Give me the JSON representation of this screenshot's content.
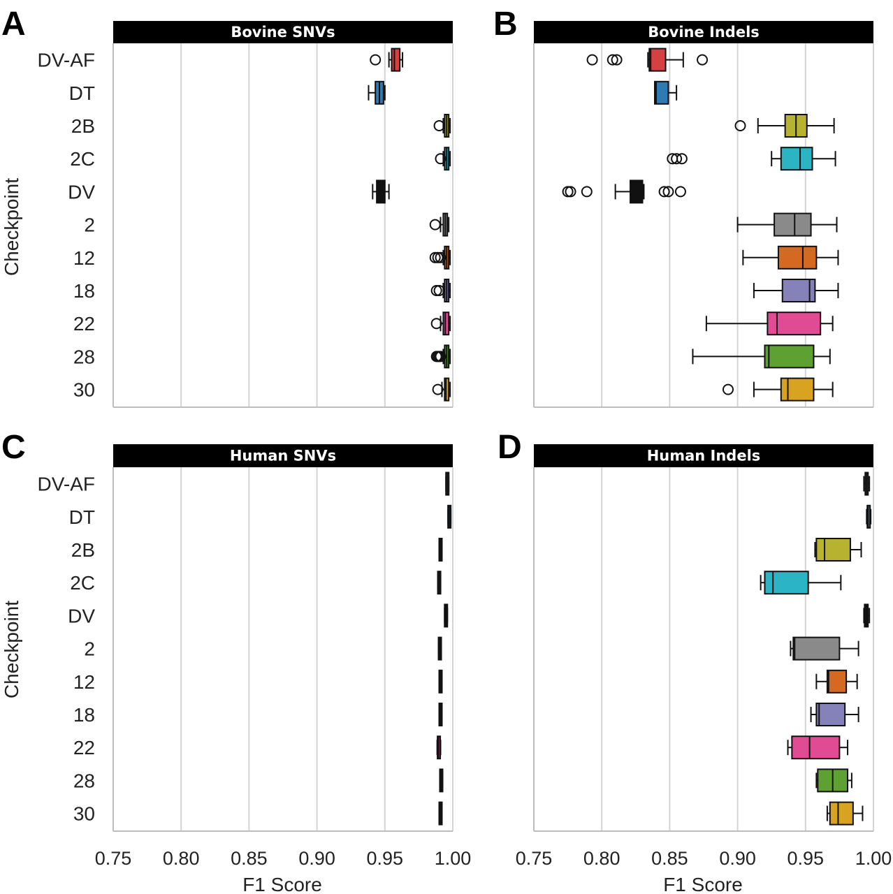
{
  "x_axis": {
    "label": "F1 Score",
    "ticks": [
      "0.75",
      "0.80",
      "0.85",
      "0.90",
      "0.95",
      "1.00"
    ]
  },
  "y_axis_label": "Checkpoint",
  "colors": {
    "DV-AF": "#d64042",
    "DT": "#2e7ab3",
    "2B": "#b7b331",
    "2C": "#2bb4c4",
    "DV": "#111111",
    "2": "#8a8a8a",
    "12": "#d46a22",
    "18": "#8582ba",
    "22": "#e04b93",
    "28": "#5fa032",
    "30": "#d9a322"
  },
  "chart_data": [
    {
      "letter": "A",
      "title": "Bovine SNVs",
      "type": "boxplot",
      "xlim": [
        0.75,
        1.0
      ],
      "grid": true,
      "xlabel": "",
      "ylabel": "Checkpoint",
      "categories": [
        "DV-AF",
        "DT",
        "2B",
        "2C",
        "DV",
        "2",
        "12",
        "18",
        "22",
        "28",
        "30"
      ],
      "boxes": [
        {
          "label": "DV-AF",
          "whislo": 0.953,
          "q1": 0.955,
          "med": 0.957,
          "q3": 0.961,
          "whishi": 0.963,
          "fliers": [
            0.943
          ]
        },
        {
          "label": "DT",
          "whislo": 0.938,
          "q1": 0.943,
          "med": 0.946,
          "q3": 0.949,
          "whishi": 0.95,
          "fliers": []
        },
        {
          "label": "2B",
          "whislo": 0.993,
          "q1": 0.994,
          "med": 0.9955,
          "q3": 0.997,
          "whishi": 0.998,
          "fliers": [
            0.99
          ]
        },
        {
          "label": "2C",
          "whislo": 0.993,
          "q1": 0.994,
          "med": 0.9955,
          "q3": 0.997,
          "whishi": 0.998,
          "fliers": [
            0.991
          ]
        },
        {
          "label": "DV",
          "whislo": 0.941,
          "q1": 0.944,
          "med": 0.947,
          "q3": 0.95,
          "whishi": 0.953,
          "fliers": []
        },
        {
          "label": "2",
          "whislo": 0.991,
          "q1": 0.993,
          "med": 0.9945,
          "q3": 0.996,
          "whishi": 0.997,
          "fliers": [
            0.987
          ]
        },
        {
          "label": "12",
          "whislo": 0.993,
          "q1": 0.994,
          "med": 0.9955,
          "q3": 0.997,
          "whishi": 0.998,
          "fliers": [
            0.987,
            0.989,
            0.991
          ]
        },
        {
          "label": "18",
          "whislo": 0.993,
          "q1": 0.994,
          "med": 0.9955,
          "q3": 0.997,
          "whishi": 0.998,
          "fliers": [
            0.988,
            0.99
          ]
        },
        {
          "label": "22",
          "whislo": 0.991,
          "q1": 0.993,
          "med": 0.9945,
          "q3": 0.997,
          "whishi": 0.998,
          "fliers": [
            0.988
          ]
        },
        {
          "label": "28",
          "whislo": 0.993,
          "q1": 0.994,
          "med": 0.9955,
          "q3": 0.997,
          "whishi": 0.998,
          "fliers": [
            0.988,
            0.989,
            0.99,
            0.991
          ]
        },
        {
          "label": "30",
          "whislo": 0.992,
          "q1": 0.994,
          "med": 0.995,
          "q3": 0.997,
          "whishi": 0.998,
          "fliers": [
            0.989
          ]
        }
      ]
    },
    {
      "letter": "B",
      "title": "Bovine Indels",
      "type": "boxplot",
      "xlim": [
        0.75,
        1.0
      ],
      "grid": true,
      "xlabel": "",
      "ylabel": "",
      "categories": [
        "DV-AF",
        "DT",
        "2B",
        "2C",
        "DV",
        "2",
        "12",
        "18",
        "22",
        "28",
        "30"
      ],
      "boxes": [
        {
          "label": "DV-AF",
          "whislo": 0.834,
          "q1": 0.835,
          "med": 0.836,
          "q3": 0.847,
          "whishi": 0.86,
          "fliers": [
            0.793,
            0.808,
            0.811,
            0.874
          ]
        },
        {
          "label": "DT",
          "whislo": 0.839,
          "q1": 0.839,
          "med": 0.84,
          "q3": 0.849,
          "whishi": 0.855,
          "fliers": []
        },
        {
          "label": "2B",
          "whislo": 0.915,
          "q1": 0.935,
          "med": 0.943,
          "q3": 0.951,
          "whishi": 0.971,
          "fliers": [
            0.902
          ]
        },
        {
          "label": "2C",
          "whislo": 0.925,
          "q1": 0.932,
          "med": 0.946,
          "q3": 0.955,
          "whishi": 0.972,
          "fliers": [
            0.852,
            0.855,
            0.859
          ]
        },
        {
          "label": "DV",
          "whislo": 0.81,
          "q1": 0.821,
          "med": 0.824,
          "q3": 0.83,
          "whishi": 0.831,
          "fliers": [
            0.775,
            0.777,
            0.789,
            0.846,
            0.849,
            0.858
          ]
        },
        {
          "label": "2",
          "whislo": 0.9,
          "q1": 0.927,
          "med": 0.942,
          "q3": 0.954,
          "whishi": 0.973,
          "fliers": []
        },
        {
          "label": "12",
          "whislo": 0.904,
          "q1": 0.93,
          "med": 0.948,
          "q3": 0.958,
          "whishi": 0.974,
          "fliers": []
        },
        {
          "label": "18",
          "whislo": 0.912,
          "q1": 0.933,
          "med": 0.953,
          "q3": 0.957,
          "whishi": 0.974,
          "fliers": []
        },
        {
          "label": "22",
          "whislo": 0.877,
          "q1": 0.922,
          "med": 0.929,
          "q3": 0.961,
          "whishi": 0.97,
          "fliers": []
        },
        {
          "label": "28",
          "whislo": 0.867,
          "q1": 0.92,
          "med": 0.923,
          "q3": 0.956,
          "whishi": 0.968,
          "fliers": []
        },
        {
          "label": "30",
          "whislo": 0.912,
          "q1": 0.932,
          "med": 0.937,
          "q3": 0.956,
          "whishi": 0.97,
          "fliers": [
            0.893
          ]
        }
      ]
    },
    {
      "letter": "C",
      "title": "Human SNVs",
      "type": "boxplot",
      "xlim": [
        0.75,
        1.0
      ],
      "grid": true,
      "xlabel": "F1 Score",
      "ylabel": "Checkpoint",
      "categories": [
        "DV-AF",
        "DT",
        "2B",
        "2C",
        "DV",
        "2",
        "12",
        "18",
        "22",
        "28",
        "30"
      ],
      "boxes": [
        {
          "label": "DV-AF",
          "whislo": 0.995,
          "q1": 0.9955,
          "med": 0.996,
          "q3": 0.9965,
          "whishi": 0.997,
          "fliers": []
        },
        {
          "label": "DT",
          "whislo": 0.9965,
          "q1": 0.997,
          "med": 0.9975,
          "q3": 0.998,
          "whishi": 0.9985,
          "fliers": []
        },
        {
          "label": "2B",
          "whislo": 0.99,
          "q1": 0.9905,
          "med": 0.991,
          "q3": 0.9915,
          "whishi": 0.992,
          "fliers": []
        },
        {
          "label": "2C",
          "whislo": 0.989,
          "q1": 0.9895,
          "med": 0.99,
          "q3": 0.9905,
          "whishi": 0.991,
          "fliers": []
        },
        {
          "label": "DV",
          "whislo": 0.994,
          "q1": 0.9945,
          "med": 0.995,
          "q3": 0.9955,
          "whishi": 0.996,
          "fliers": []
        },
        {
          "label": "2",
          "whislo": 0.9895,
          "q1": 0.99,
          "med": 0.9905,
          "q3": 0.991,
          "whishi": 0.9915,
          "fliers": []
        },
        {
          "label": "12",
          "whislo": 0.99,
          "q1": 0.9905,
          "med": 0.991,
          "q3": 0.9915,
          "whishi": 0.992,
          "fliers": []
        },
        {
          "label": "18",
          "whislo": 0.99,
          "q1": 0.9905,
          "med": 0.991,
          "q3": 0.9915,
          "whishi": 0.992,
          "fliers": []
        },
        {
          "label": "22",
          "whislo": 0.9885,
          "q1": 0.989,
          "med": 0.9895,
          "q3": 0.9905,
          "whishi": 0.991,
          "fliers": []
        },
        {
          "label": "28",
          "whislo": 0.9905,
          "q1": 0.991,
          "med": 0.9915,
          "q3": 0.992,
          "whishi": 0.9925,
          "fliers": []
        },
        {
          "label": "30",
          "whislo": 0.99,
          "q1": 0.9905,
          "med": 0.991,
          "q3": 0.9915,
          "whishi": 0.992,
          "fliers": []
        }
      ]
    },
    {
      "letter": "D",
      "title": "Human Indels",
      "type": "boxplot",
      "xlim": [
        0.75,
        1.0
      ],
      "grid": true,
      "xlabel": "F1 Score",
      "ylabel": "",
      "categories": [
        "DV-AF",
        "DT",
        "2B",
        "2C",
        "DV",
        "2",
        "12",
        "18",
        "22",
        "28",
        "30"
      ],
      "boxes": [
        {
          "label": "DV-AF",
          "whislo": 0.993,
          "q1": 0.994,
          "med": 0.995,
          "q3": 0.996,
          "whishi": 0.997,
          "fliers": []
        },
        {
          "label": "DT",
          "whislo": 0.995,
          "q1": 0.9955,
          "med": 0.996,
          "q3": 0.9975,
          "whishi": 0.998,
          "fliers": []
        },
        {
          "label": "2B",
          "whislo": 0.957,
          "q1": 0.958,
          "med": 0.964,
          "q3": 0.983,
          "whishi": 0.991,
          "fliers": []
        },
        {
          "label": "2C",
          "whislo": 0.917,
          "q1": 0.92,
          "med": 0.926,
          "q3": 0.952,
          "whishi": 0.976,
          "fliers": []
        },
        {
          "label": "DV",
          "whislo": 0.993,
          "q1": 0.9935,
          "med": 0.9945,
          "q3": 0.996,
          "whishi": 0.997,
          "fliers": []
        },
        {
          "label": "2",
          "whislo": 0.939,
          "q1": 0.941,
          "med": 0.942,
          "q3": 0.975,
          "whishi": 0.989,
          "fliers": []
        },
        {
          "label": "12",
          "whislo": 0.958,
          "q1": 0.966,
          "med": 0.967,
          "q3": 0.98,
          "whishi": 0.988,
          "fliers": []
        },
        {
          "label": "18",
          "whislo": 0.954,
          "q1": 0.958,
          "med": 0.96,
          "q3": 0.979,
          "whishi": 0.989,
          "fliers": []
        },
        {
          "label": "22",
          "whislo": 0.937,
          "q1": 0.94,
          "med": 0.953,
          "q3": 0.975,
          "whishi": 0.981,
          "fliers": []
        },
        {
          "label": "28",
          "whislo": 0.958,
          "q1": 0.959,
          "med": 0.97,
          "q3": 0.981,
          "whishi": 0.984,
          "fliers": []
        },
        {
          "label": "30",
          "whislo": 0.966,
          "q1": 0.968,
          "med": 0.974,
          "q3": 0.985,
          "whishi": 0.992,
          "fliers": []
        }
      ]
    }
  ]
}
